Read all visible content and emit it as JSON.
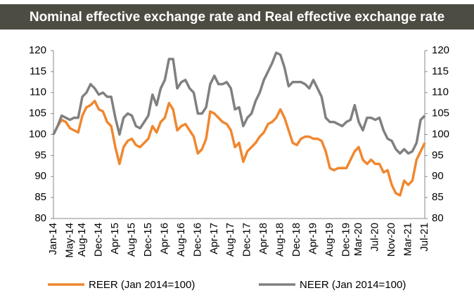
{
  "chart_data": {
    "type": "line",
    "title": "Nominal effective exchange rate and Real effective exchange rate",
    "categories": [
      "Jan-14",
      null,
      null,
      null,
      "May-14",
      null,
      null,
      "Aug-14",
      null,
      null,
      null,
      "Dec-14",
      null,
      null,
      null,
      "Apr-15",
      null,
      null,
      null,
      "Aug-15",
      null,
      null,
      null,
      "Dec-15",
      null,
      null,
      null,
      "Apr-16",
      null,
      null,
      null,
      "Aug-16",
      null,
      null,
      null,
      "Dec-16",
      null,
      null,
      null,
      "Apr-17",
      null,
      null,
      null,
      "Aug-17",
      null,
      null,
      null,
      "Dec-17",
      null,
      null,
      null,
      "Apr-18",
      null,
      null,
      null,
      "Aug-18",
      null,
      null,
      null,
      "Dec-18",
      null,
      null,
      null,
      "Apr-19",
      null,
      null,
      null,
      "Aug-19",
      null,
      null,
      null,
      "Dec-19",
      null,
      null,
      "Mar-20",
      null,
      null,
      null,
      "Jul-20",
      null,
      null,
      null,
      "Nov-20",
      null,
      null,
      null,
      "Mar-21",
      null,
      null,
      null,
      "Jul-21"
    ],
    "series": [
      {
        "name": "REER (Jan 2014=100)",
        "color": "#f0872f",
        "values": [
          100,
          102,
          103.5,
          103,
          101.5,
          101,
          100.5,
          104.5,
          106.5,
          107,
          108,
          106,
          105.5,
          103,
          102,
          97,
          93,
          97,
          98.5,
          99,
          97.5,
          97,
          98,
          99,
          102,
          100.5,
          103,
          104,
          107.5,
          106,
          101,
          102,
          102.5,
          101,
          99.5,
          95.5,
          96.5,
          99,
          105.5,
          105,
          104,
          103,
          102.5,
          101,
          97,
          98,
          93.5,
          96,
          97,
          98,
          99.5,
          100.5,
          102.5,
          103,
          104,
          106,
          104,
          101,
          98,
          97.5,
          99,
          99.5,
          99.5,
          99,
          99,
          98.5,
          96,
          92,
          91.5,
          92,
          92,
          92,
          94,
          96,
          97,
          94,
          93,
          94,
          93,
          93,
          91,
          91.5,
          88,
          86,
          85.5,
          89,
          88,
          89,
          94,
          96,
          98
        ]
      },
      {
        "name": "NEER (Jan 2014=100)",
        "color": "#808080",
        "values": [
          100,
          102,
          104.5,
          104,
          103.5,
          104,
          104,
          109,
          110,
          112,
          111,
          109.5,
          110,
          109,
          109,
          104,
          100,
          104,
          105,
          104.5,
          102,
          101.5,
          103,
          104.5,
          109.5,
          107,
          111,
          113,
          118,
          118,
          111,
          112.5,
          113,
          111,
          110,
          105,
          105,
          106.5,
          112,
          114,
          112,
          112,
          112.5,
          111,
          106,
          106.5,
          102,
          104,
          105,
          108,
          110,
          113,
          115,
          117,
          119.5,
          119,
          116,
          111.5,
          112.5,
          112.5,
          112.5,
          112,
          111,
          113,
          111,
          109,
          104,
          103,
          103,
          102.5,
          102,
          103,
          103.5,
          107,
          103,
          101,
          104,
          104,
          103.5,
          104,
          101,
          99,
          98.5,
          96.5,
          95.5,
          96.5,
          95.5,
          96,
          98,
          103.5,
          104.5
        ]
      }
    ],
    "ylim": [
      80,
      120
    ],
    "yticks": [
      80,
      85,
      90,
      95,
      100,
      105,
      110,
      115,
      120
    ],
    "y2lim": [
      80,
      120
    ],
    "y2ticks": [
      80,
      85,
      90,
      95,
      100,
      105,
      110,
      115,
      120
    ],
    "legend": "bottom"
  }
}
